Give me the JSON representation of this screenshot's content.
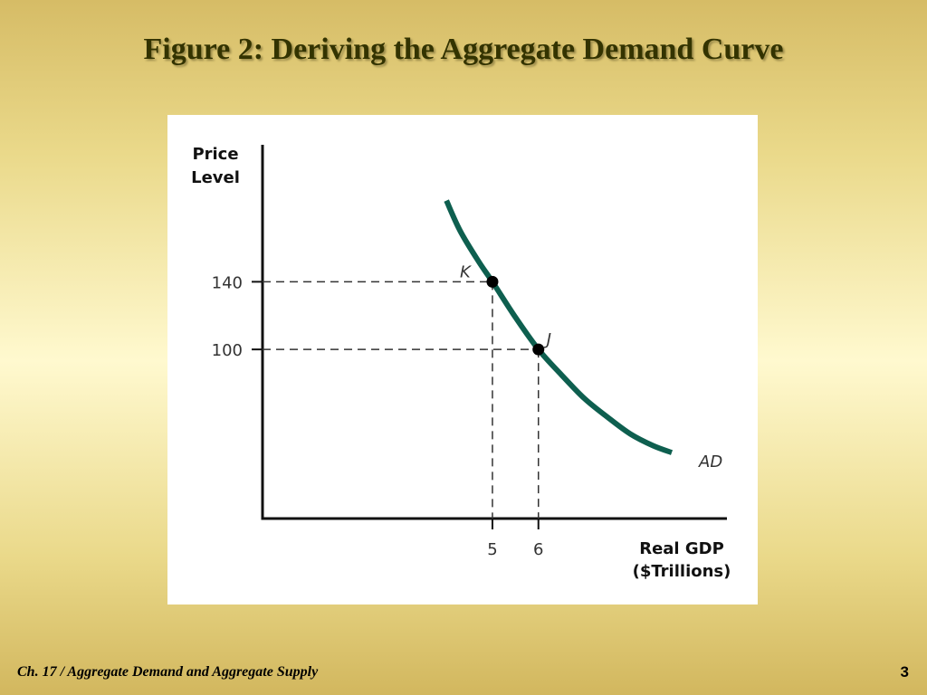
{
  "slide": {
    "title": "Figure 2: Deriving the Aggregate Demand Curve",
    "footer_left": "Ch. 17 / Aggregate Demand and Aggregate Supply",
    "page_number": "3"
  },
  "colors": {
    "curve": "#0e5f4f",
    "title_text": "#333300",
    "background_gold": "#d6bc66",
    "background_light": "#fff9cf"
  },
  "chart_data": {
    "type": "line",
    "ylabel_lines": [
      "Price",
      "Level"
    ],
    "xlabel_lines": [
      "Real GDP",
      "($Trillions)"
    ],
    "xlim": [
      0,
      10.1
    ],
    "ylim": [
      0,
      221
    ],
    "x_ticks": [
      5,
      6
    ],
    "y_ticks": [
      140,
      100
    ],
    "grid": false,
    "series": [
      {
        "name": "AD",
        "x": [
          4.0,
          4.3,
          4.7,
          5.0,
          5.5,
          6.0,
          6.5,
          7.0,
          7.5,
          8.0,
          8.5,
          8.9
        ],
        "y": [
          188,
          170,
          152,
          140,
          119,
          100,
          85,
          71,
          60,
          50,
          43,
          39
        ]
      }
    ],
    "points": [
      {
        "label": "K",
        "x": 5,
        "y": 140
      },
      {
        "label": "J",
        "x": 6,
        "y": 100
      }
    ]
  }
}
